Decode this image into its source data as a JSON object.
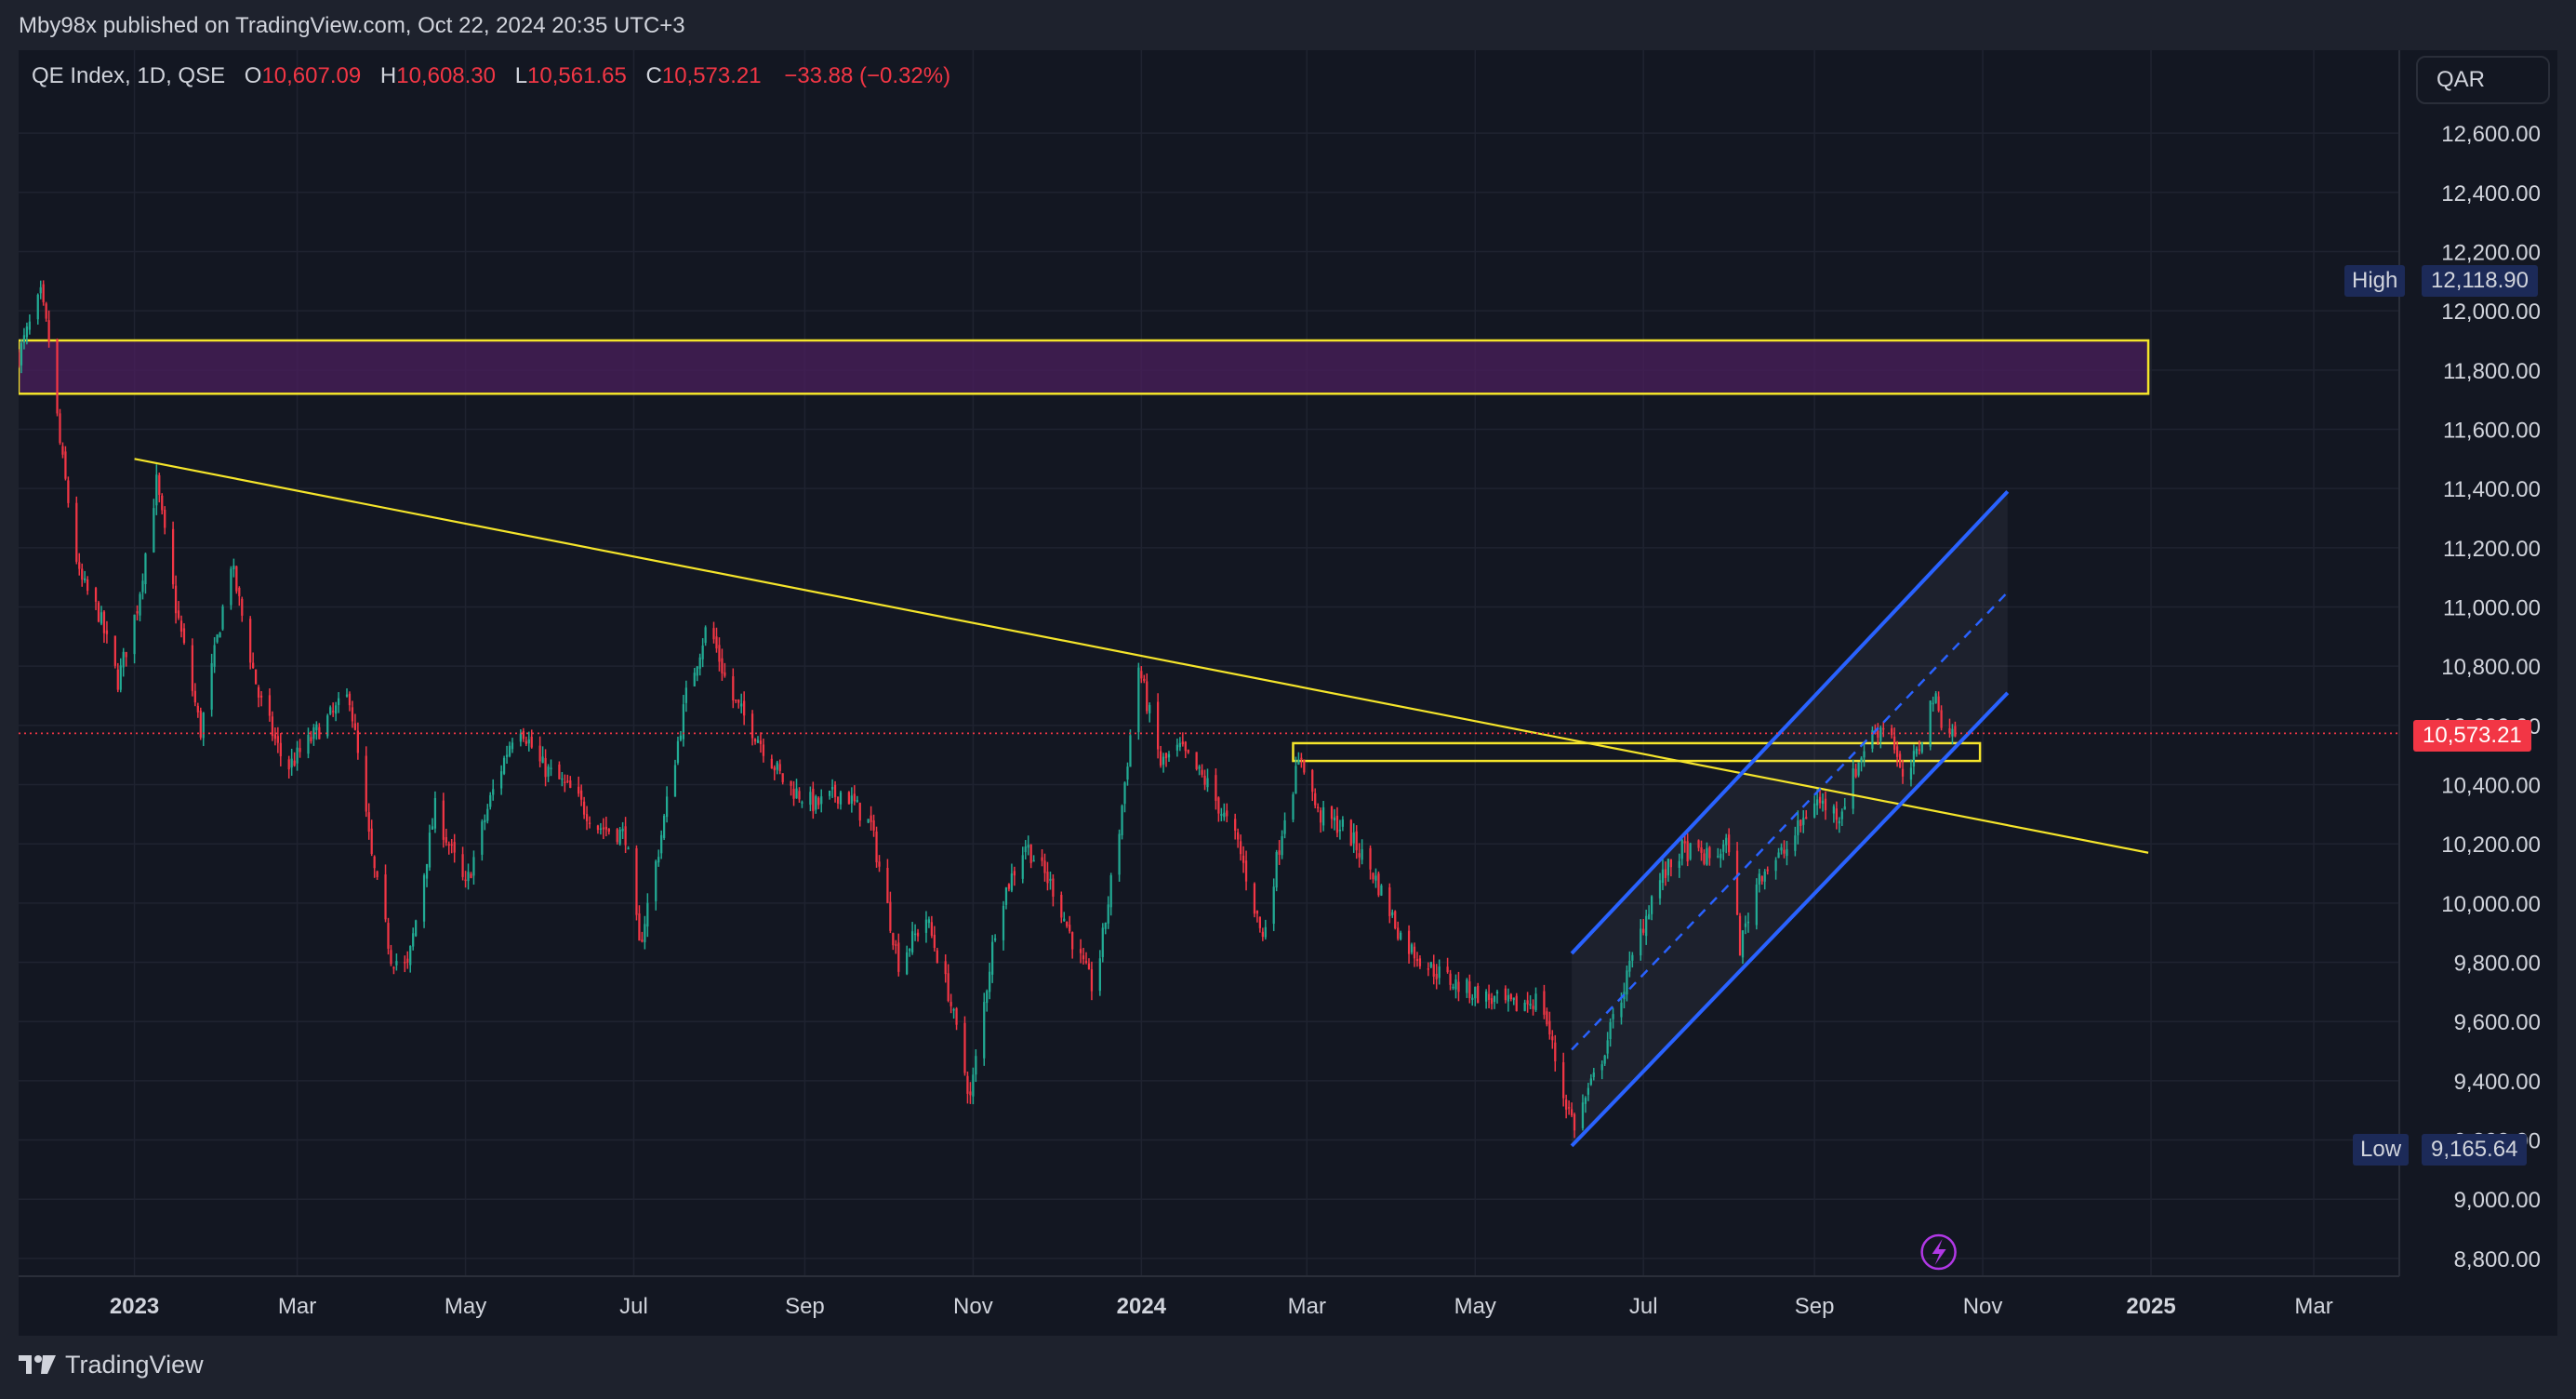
{
  "header": {
    "publish_text": "Mby98x published on TradingView.com, Oct 22, 2024 20:35 UTC+3"
  },
  "legend": {
    "symbol": "QE Index, 1D, QSE",
    "open_key": "O",
    "open": "10,607.09",
    "high_key": "H",
    "high": "10,608.30",
    "low_key": "L",
    "low": "10,561.65",
    "close_key": "C",
    "close": "10,573.21",
    "change": "−33.88 (−0.32%)"
  },
  "currency_button": {
    "label": "QAR"
  },
  "price_labels": {
    "high_label": "High",
    "high_value": "12,118.90",
    "low_label": "Low",
    "low_value": "9,165.64",
    "last_value": "10,573.21"
  },
  "footer": {
    "brand": "TradingView"
  },
  "colors": {
    "background": "#131722",
    "up": "#22ab94",
    "down": "#f23645",
    "trendline": "#f5e52b",
    "channel": "#2962ff",
    "resistance_zone_fill": "#4b1f5c",
    "grid": "#1f2330"
  },
  "chart_data": {
    "type": "candlestick",
    "symbol": "QE Index",
    "interval": "1D",
    "exchange": "QSE",
    "currency": "QAR",
    "y_axis": {
      "position": "right",
      "ticks": [
        12600,
        12400,
        12200,
        12000,
        11800,
        11600,
        11400,
        11200,
        11000,
        10800,
        10600,
        10400,
        10200,
        10000,
        9800,
        9600,
        9400,
        9200,
        9000,
        8800
      ],
      "tick_labels": [
        "12,600.00",
        "12,400.00",
        "12,200.00",
        "12,000.00",
        "11,800.00",
        "11,600.00",
        "11,400.00",
        "11,200.00",
        "11,000.00",
        "10,800.00",
        "10,600.00",
        "10,400.00",
        "10,200.00",
        "10,000.00",
        "9,800.00",
        "9,600.00",
        "9,400.00",
        "9,200.00",
        "9,000.00",
        "8,800.00"
      ],
      "range": [
        8740,
        12880
      ]
    },
    "x_axis": {
      "range": [
        "2022-11-20",
        "2025-04-01"
      ],
      "ticks": [
        {
          "date": "2023-01-01",
          "label": "2023",
          "bold": true
        },
        {
          "date": "2023-03-01",
          "label": "Mar",
          "bold": false
        },
        {
          "date": "2023-05-01",
          "label": "May",
          "bold": false
        },
        {
          "date": "2023-07-01",
          "label": "Jul",
          "bold": false
        },
        {
          "date": "2023-09-01",
          "label": "Sep",
          "bold": false
        },
        {
          "date": "2023-11-01",
          "label": "Nov",
          "bold": false
        },
        {
          "date": "2024-01-01",
          "label": "2024",
          "bold": true
        },
        {
          "date": "2024-03-01",
          "label": "Mar",
          "bold": false
        },
        {
          "date": "2024-05-01",
          "label": "May",
          "bold": false
        },
        {
          "date": "2024-07-01",
          "label": "Jul",
          "bold": false
        },
        {
          "date": "2024-09-01",
          "label": "Sep",
          "bold": false
        },
        {
          "date": "2024-11-01",
          "label": "Nov",
          "bold": false
        },
        {
          "date": "2025-01-01",
          "label": "2025",
          "bold": true
        },
        {
          "date": "2025-03-01",
          "label": "Mar",
          "bold": false
        }
      ]
    },
    "grid": true,
    "last_price": 10573.21,
    "series_high": 12118.9,
    "series_low": 9165.64,
    "price_path": [
      [
        "2022-11-20",
        11850
      ],
      [
        "2022-11-28",
        12050
      ],
      [
        "2022-12-01",
        11900
      ],
      [
        "2022-12-05",
        11550
      ],
      [
        "2022-12-12",
        11100
      ],
      [
        "2022-12-19",
        10980
      ],
      [
        "2022-12-26",
        10750
      ],
      [
        "2023-01-02",
        11000
      ],
      [
        "2023-01-09",
        11420
      ],
      [
        "2023-01-16",
        11000
      ],
      [
        "2023-01-25",
        10580
      ],
      [
        "2023-02-05",
        11150
      ],
      [
        "2023-02-15",
        10700
      ],
      [
        "2023-02-25",
        10450
      ],
      [
        "2023-03-10",
        10600
      ],
      [
        "2023-03-20",
        10700
      ],
      [
        "2023-03-28",
        10150
      ],
      [
        "2023-04-04",
        9820
      ],
      [
        "2023-04-10",
        9780
      ],
      [
        "2023-04-20",
        10320
      ],
      [
        "2023-05-01",
        10050
      ],
      [
        "2023-05-10",
        10350
      ],
      [
        "2023-05-20",
        10620
      ],
      [
        "2023-05-28",
        10470
      ],
      [
        "2023-06-08",
        10380
      ],
      [
        "2023-06-18",
        10260
      ],
      [
        "2023-06-28",
        10230
      ],
      [
        "2023-07-03",
        9850
      ],
      [
        "2023-07-10",
        10180
      ],
      [
        "2023-07-20",
        10700
      ],
      [
        "2023-07-28",
        10950
      ],
      [
        "2023-08-05",
        10700
      ],
      [
        "2023-08-15",
        10560
      ],
      [
        "2023-08-25",
        10400
      ],
      [
        "2023-09-05",
        10330
      ],
      [
        "2023-09-15",
        10380
      ],
      [
        "2023-09-25",
        10260
      ],
      [
        "2023-10-05",
        9800
      ],
      [
        "2023-10-15",
        9950
      ],
      [
        "2023-10-23",
        9700
      ],
      [
        "2023-10-31",
        9340
      ],
      [
        "2023-11-10",
        9980
      ],
      [
        "2023-11-20",
        10200
      ],
      [
        "2023-11-30",
        10050
      ],
      [
        "2023-12-08",
        9850
      ],
      [
        "2023-12-15",
        9700
      ],
      [
        "2023-12-24",
        10250
      ],
      [
        "2023-12-31",
        10800
      ],
      [
        "2024-01-08",
        10470
      ],
      [
        "2024-01-15",
        10520
      ],
      [
        "2024-01-25",
        10400
      ],
      [
        "2024-02-05",
        10200
      ],
      [
        "2024-02-14",
        9880
      ],
      [
        "2024-02-22",
        10300
      ],
      [
        "2024-02-28",
        10500
      ],
      [
        "2024-03-05",
        10300
      ],
      [
        "2024-03-15",
        10250
      ],
      [
        "2024-03-25",
        10100
      ],
      [
        "2024-04-05",
        9870
      ],
      [
        "2024-04-15",
        9780
      ],
      [
        "2024-04-25",
        9720
      ],
      [
        "2024-05-05",
        9680
      ],
      [
        "2024-05-15",
        9650
      ],
      [
        "2024-05-25",
        9680
      ],
      [
        "2024-06-02",
        9350
      ],
      [
        "2024-06-06",
        9250
      ],
      [
        "2024-06-15",
        9450
      ],
      [
        "2024-06-25",
        9750
      ],
      [
        "2024-07-05",
        10050
      ],
      [
        "2024-07-15",
        10180
      ],
      [
        "2024-07-25",
        10150
      ],
      [
        "2024-08-01",
        10200
      ],
      [
        "2024-08-05",
        9850
      ],
      [
        "2024-08-12",
        10100
      ],
      [
        "2024-08-22",
        10180
      ],
      [
        "2024-09-01",
        10350
      ],
      [
        "2024-09-10",
        10300
      ],
      [
        "2024-09-20",
        10550
      ],
      [
        "2024-09-28",
        10620
      ],
      [
        "2024-10-03",
        10400
      ],
      [
        "2024-10-08",
        10500
      ],
      [
        "2024-10-14",
        10700
      ],
      [
        "2024-10-18",
        10600
      ],
      [
        "2024-10-22",
        10573
      ]
    ],
    "annotations": [
      {
        "type": "zone",
        "label": "",
        "from": "2022-11-20",
        "to": "2024-12-31",
        "low": 11720,
        "high": 11900,
        "fill": "#4b1f5c",
        "border": "#f5e52b"
      },
      {
        "type": "trendline",
        "from": [
          "2023-01-01",
          11500
        ],
        "to": [
          "2024-12-31",
          10170
        ],
        "color": "#f5e52b"
      },
      {
        "type": "zone",
        "label": "",
        "from": "2024-02-25",
        "to": "2024-10-31",
        "low": 10480,
        "high": 10540,
        "fill": "none",
        "border": "#f5e52b"
      },
      {
        "type": "channel",
        "start": "2024-06-05",
        "end": "2024-11-10",
        "upper": [
          9830,
          11390
        ],
        "lower": [
          9180,
          10710
        ],
        "mid": [
          9505,
          11050
        ],
        "color": "#2962ff"
      }
    ]
  }
}
